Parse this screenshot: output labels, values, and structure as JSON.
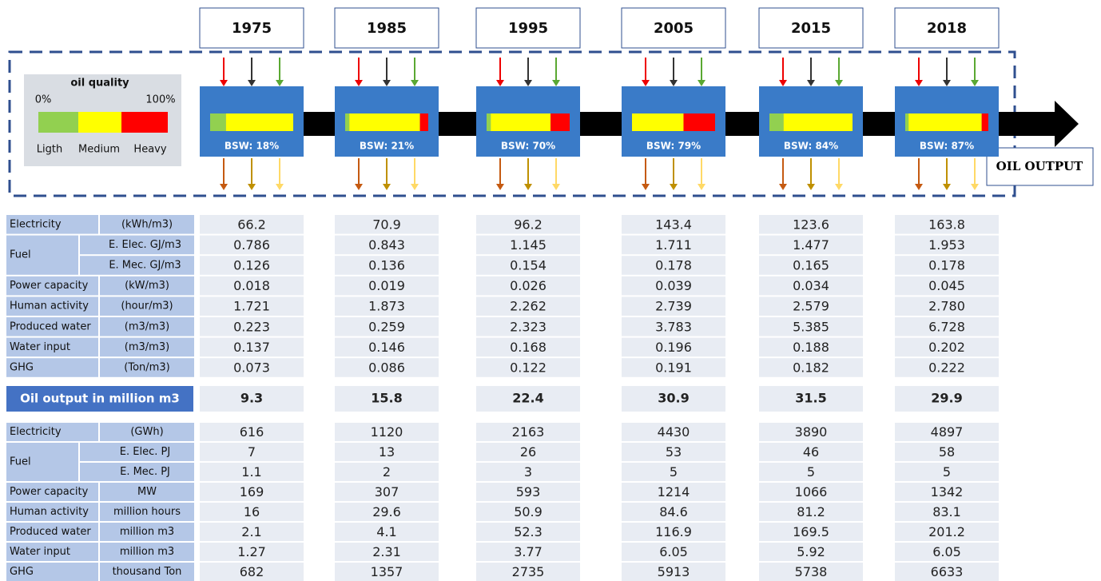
{
  "header": {
    "years": [
      "1975",
      "1985",
      "1995",
      "2005",
      "2015",
      "2018"
    ]
  },
  "legend": {
    "title": "oil quality",
    "min": "0%",
    "max": "100%",
    "labels": [
      "Ligth",
      "Medium",
      "Heavy"
    ]
  },
  "stages": [
    {
      "bsw": "BSW: 18%",
      "quality": [
        19,
        81,
        0
      ]
    },
    {
      "bsw": "BSW: 21%",
      "quality": [
        5,
        85,
        10
      ]
    },
    {
      "bsw": "BSW: 70%",
      "quality": [
        5,
        72,
        23
      ]
    },
    {
      "bsw": "BSW: 79%",
      "quality": [
        0,
        62,
        38
      ]
    },
    {
      "bsw": "BSW: 84%",
      "quality": [
        17,
        83,
        0
      ]
    },
    {
      "bsw": "BSW: 87%",
      "quality": [
        4,
        88,
        8
      ]
    }
  ],
  "output_label": "OIL OUTPUT",
  "table1": {
    "rows": [
      {
        "name": "Electricity",
        "items": [
          {
            "unit": "(kWh/m3)",
            "values": [
              "66.2",
              "70.9",
              "96.2",
              "143.4",
              "123.6",
              "163.8"
            ]
          }
        ]
      },
      {
        "name": "Fuel",
        "items": [
          {
            "unit": "E. Elec. GJ/m3",
            "values": [
              "0.786",
              "0.843",
              "1.145",
              "1.711",
              "1.477",
              "1.953"
            ]
          },
          {
            "unit": "E. Mec. GJ/m3",
            "values": [
              "0.126",
              "0.136",
              "0.154",
              "0.178",
              "0.165",
              "0.178"
            ]
          }
        ]
      },
      {
        "name": "Power capacity",
        "items": [
          {
            "unit": "(kW/m3)",
            "values": [
              "0.018",
              "0.019",
              "0.026",
              "0.039",
              "0.034",
              "0.045"
            ]
          }
        ]
      },
      {
        "name": "Human activity",
        "items": [
          {
            "unit": "(hour/m3)",
            "values": [
              "1.721",
              "1.873",
              "2.262",
              "2.739",
              "2.579",
              "2.780"
            ]
          }
        ]
      },
      {
        "name": "Produced water",
        "items": [
          {
            "unit": "(m3/m3)",
            "values": [
              "0.223",
              "0.259",
              "2.323",
              "3.783",
              "5.385",
              "6.728"
            ]
          }
        ]
      },
      {
        "name": "Water input",
        "items": [
          {
            "unit": "(m3/m3)",
            "values": [
              "0.137",
              "0.146",
              "0.168",
              "0.196",
              "0.188",
              "0.202"
            ]
          }
        ]
      },
      {
        "name": "GHG",
        "items": [
          {
            "unit": "(Ton/m3)",
            "values": [
              "0.073",
              "0.086",
              "0.122",
              "0.191",
              "0.182",
              "0.222"
            ]
          }
        ]
      }
    ]
  },
  "oil_output": {
    "label": "Oil output in million m3",
    "values": [
      "9.3",
      "15.8",
      "22.4",
      "30.9",
      "31.5",
      "29.9"
    ]
  },
  "table2": {
    "rows": [
      {
        "name": "Electricity",
        "items": [
          {
            "unit": "(GWh)",
            "values": [
              "616",
              "1120",
              "2163",
              "4430",
              "3890",
              "4897"
            ]
          }
        ]
      },
      {
        "name": "Fuel",
        "items": [
          {
            "unit": "E. Elec. PJ",
            "values": [
              "7",
              "13",
              "26",
              "53",
              "46",
              "58"
            ]
          },
          {
            "unit": "E. Mec. PJ",
            "values": [
              "1.1",
              "2",
              "3",
              "5",
              "5",
              "5"
            ]
          }
        ]
      },
      {
        "name": "Power capacity",
        "items": [
          {
            "unit": "MW",
            "values": [
              "169",
              "307",
              "593",
              "1214",
              "1066",
              "1342"
            ]
          }
        ]
      },
      {
        "name": "Human activity",
        "items": [
          {
            "unit": "million hours",
            "values": [
              "16",
              "29.6",
              "50.9",
              "84.6",
              "81.2",
              "83.1"
            ]
          }
        ]
      },
      {
        "name": "Produced water",
        "items": [
          {
            "unit": "million m3",
            "values": [
              "2.1",
              "4.1",
              "52.3",
              "116.9",
              "169.5",
              "201.2"
            ]
          }
        ]
      },
      {
        "name": "Water input",
        "items": [
          {
            "unit": "million m3",
            "values": [
              "1.27",
              "2.31",
              "3.77",
              "6.05",
              "5.92",
              "6.05"
            ]
          }
        ]
      },
      {
        "name": "GHG",
        "items": [
          {
            "unit": "thousand Ton",
            "values": [
              "682",
              "1357",
              "2735",
              "5913",
              "5738",
              "6633"
            ]
          }
        ]
      }
    ]
  }
}
